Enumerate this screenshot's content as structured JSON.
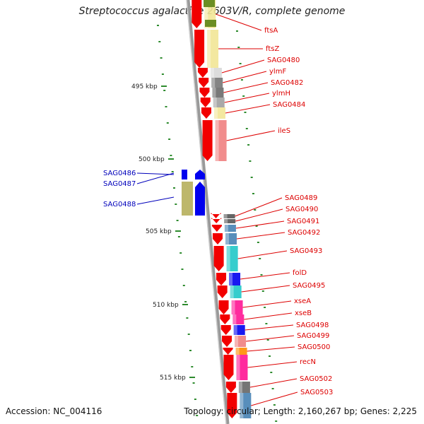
{
  "title": "Streptococcus agalactiae 2603V/R, complete genome",
  "footer": {
    "accession": "Accession: NC_004116",
    "topology": "Topology: circular; Length: 2,160,267 bp; Genes: 2,225"
  },
  "scale_labels": [
    "495 kbp",
    "500 kbp",
    "505 kbp",
    "510 kbp",
    "515 kbp"
  ],
  "colors": {
    "gene_arrow": "#f20000",
    "reverse_arrow": "#0000ee",
    "label_forward": "#dd0000",
    "label_reverse": "#0000bb",
    "tick": "#2e8b2e",
    "backbone": "#999999"
  },
  "forward_genes": [
    {
      "name": "ftsA",
      "cog_color": "#f2e596"
    },
    {
      "name": "ftsZ",
      "cog_color": "#f2e596"
    },
    {
      "name": "SAG0480",
      "cog_color": "#d8d8d8"
    },
    {
      "name": "ylmF",
      "cog_color": "#777777"
    },
    {
      "name": "SAG0482",
      "cog_color": "#6a6a6a"
    },
    {
      "name": "ylmH",
      "cog_color": "#a0a0a0"
    },
    {
      "name": "SAG0484",
      "cog_color": "#f2e596"
    },
    {
      "name": "ileS",
      "cog_color": "#f08080"
    },
    {
      "name": "SAG0489",
      "cog_color": "#555555"
    },
    {
      "name": "SAG0490",
      "cog_color": "#555555"
    },
    {
      "name": "SAG0491",
      "cog_color": "#4682b4"
    },
    {
      "name": "SAG0492",
      "cog_color": "#4682b4"
    },
    {
      "name": "SAG0493",
      "cog_color": "#20c8c8"
    },
    {
      "name": "folD",
      "cog_color": "#0000ee"
    },
    {
      "name": "SAG0495",
      "cog_color": "#20c8c8"
    },
    {
      "name": "xseA",
      "cog_color": "#ff1493"
    },
    {
      "name": "xseB",
      "cog_color": "#ff1493"
    },
    {
      "name": "SAG0498",
      "cog_color": "#0000ee"
    },
    {
      "name": "SAG0499",
      "cog_color": "#f08080"
    },
    {
      "name": "SAG0500",
      "cog_color": "#ff8c00"
    },
    {
      "name": "recN",
      "cog_color": "#ff1493"
    },
    {
      "name": "SAG0502",
      "cog_color": "#666666"
    },
    {
      "name": "SAG0503",
      "cog_color": "#4682b4"
    }
  ],
  "reverse_genes": [
    {
      "name": "SAG0486",
      "cog_color": "#ff1493"
    },
    {
      "name": "SAG0487",
      "cog_color": "#0000ee"
    },
    {
      "name": "SAG0488",
      "cog_color": "#bdb76b"
    }
  ]
}
